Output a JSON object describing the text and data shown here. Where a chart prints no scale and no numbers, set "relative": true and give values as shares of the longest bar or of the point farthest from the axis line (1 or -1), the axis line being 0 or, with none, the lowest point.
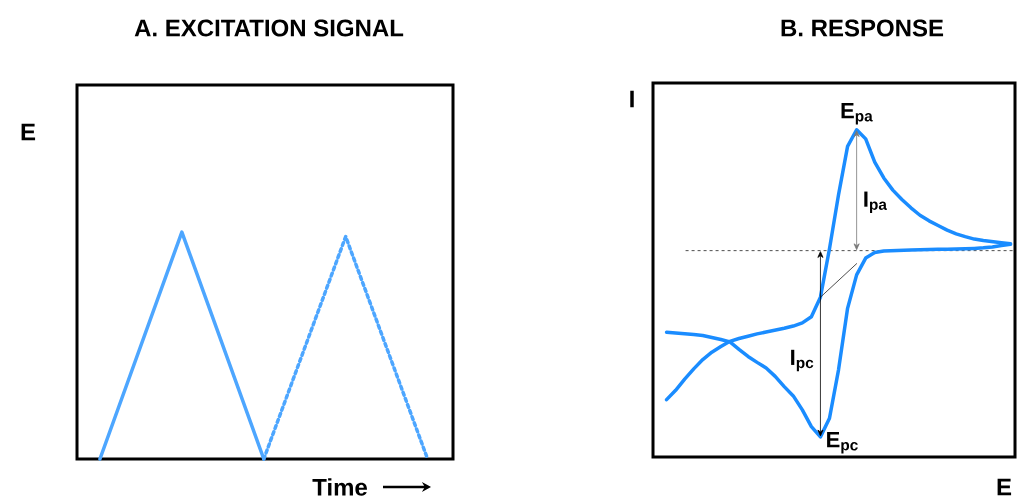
{
  "chart_data": [
    {
      "type": "line",
      "title": "A. EXCITATION SIGNAL",
      "xlabel": "Time",
      "ylabel": "E",
      "relative": true,
      "marker": "none",
      "categories": [
        null,
        null,
        null,
        null,
        null
      ],
      "series": [
        {
          "color": "#4da6ff",
          "line_style": "solid",
          "values": [
            0,
            1,
            0,
            null,
            null
          ]
        },
        {
          "color": "#4da6ff",
          "line_style": "dotted",
          "values": [
            null,
            null,
            0,
            0.98,
            0
          ]
        }
      ]
    },
    {
      "type": "line",
      "title": "B. RESPONSE",
      "xlabel": "E",
      "ylabel": "I",
      "relative": true,
      "marker": "none",
      "categories": [
        null,
        null,
        null,
        null,
        null,
        null,
        null,
        null,
        null,
        null,
        null,
        null,
        null,
        null,
        null,
        null,
        null,
        null,
        null,
        null,
        null,
        null,
        null,
        null,
        null,
        null,
        null,
        null,
        null,
        null,
        null,
        null,
        null,
        null,
        null,
        null,
        null,
        null,
        null
      ],
      "ref_lines": [
        {
          "axis": "y",
          "value": 0,
          "color": "#000000",
          "line_style": "dashed"
        }
      ],
      "annotations": [
        "E$_{pa}$",
        "I$_{pa}$",
        "I$_{pc}$",
        "E$_{pc}$"
      ],
      "series": [
        {
          "color": "#1a8cff",
          "line_style": "solid",
          "values": [
            -0.8,
            -0.75,
            -0.69,
            -0.635,
            -0.585,
            -0.545,
            -0.515,
            -0.487,
            -0.472,
            -0.46,
            -0.447,
            -0.437,
            -0.427,
            -0.417,
            -0.405,
            -0.388,
            -0.355,
            -0.25,
            0.01,
            0.3,
            0.56,
            0.649,
            0.6,
            0.475,
            0.39,
            0.325,
            0.275,
            0.23,
            0.19,
            0.16,
            0.135,
            0.11,
            0.09,
            0.075,
            0.062,
            0.054,
            0.048,
            0.042,
            0.037
          ]
        },
        {
          "color": "#1a8cff",
          "line_style": "solid",
          "values": [
            -0.438,
            -0.442,
            -0.446,
            -0.45,
            -0.456,
            -0.466,
            -0.477,
            -0.49,
            -0.53,
            -0.568,
            -0.6,
            -0.63,
            -0.675,
            -0.73,
            -0.78,
            -0.855,
            -0.945,
            -1,
            -0.9,
            -0.64,
            -0.31,
            -0.13,
            -0.04,
            -0.01,
            -0.002,
            0,
            0.002,
            0.004,
            0.005,
            0.006,
            0.007,
            0.008,
            0.009,
            0.01,
            0.012,
            0.015,
            0.02,
            0.027,
            0.034
          ]
        },
        {
          "color": "#000000",
          "line_style": "solid",
          "values": [
            null,
            null,
            null,
            null,
            null,
            null,
            null,
            null,
            null,
            null,
            null,
            null,
            null,
            null,
            null,
            null,
            null,
            -0.25,
            null,
            null,
            null,
            -0.07,
            null,
            null,
            null,
            null,
            null,
            null,
            null,
            null,
            null,
            null,
            null,
            null,
            null,
            null,
            null,
            null,
            null
          ]
        }
      ]
    }
  ]
}
